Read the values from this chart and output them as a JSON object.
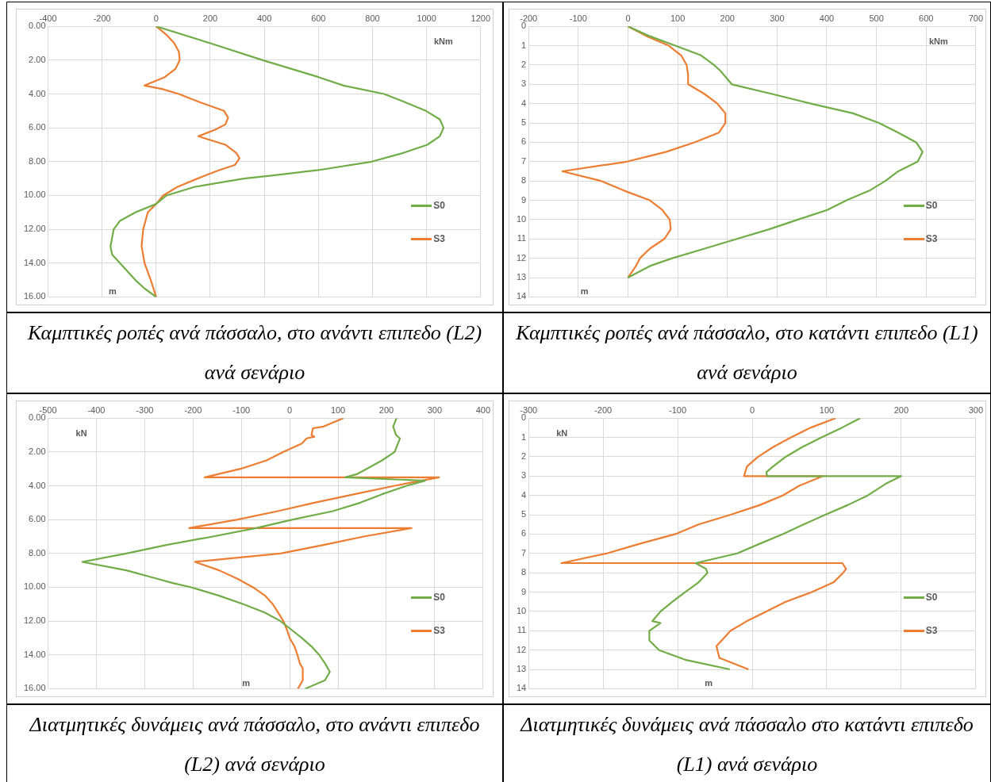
{
  "chart_data": [
    {
      "type": "line",
      "title": "Καμπτικές ροπές ανά πάσσαλο, στο ανάντι επιπεδο (L2) ανά σενάριο",
      "xlabel": "kNm",
      "ylabel": "m",
      "xlim": [
        -400,
        1200
      ],
      "xticks": [
        -400,
        -200,
        0,
        200,
        400,
        600,
        800,
        1000,
        1200
      ],
      "ylim": [
        16,
        0
      ],
      "yticks": [
        {
          "value": 0,
          "label": "0.00"
        },
        {
          "value": 2,
          "label": "2.00"
        },
        {
          "value": 4,
          "label": "4.00"
        },
        {
          "value": 6,
          "label": "6.00"
        },
        {
          "value": 8,
          "label": "8.00"
        },
        {
          "value": 10,
          "label": "10.00"
        },
        {
          "value": 12,
          "label": "12.00"
        },
        {
          "value": 14,
          "label": "14.00"
        },
        {
          "value": 16,
          "label": "16.00"
        }
      ],
      "grid": true,
      "legend": "right",
      "series": [
        {
          "name": "S0",
          "color": "#70ad47",
          "x": [
            0,
            200,
            394,
            600,
            693,
            843,
            923,
            998,
            1049,
            1063,
            1049,
            1003,
            911,
            797,
            600,
            440,
            325,
            141,
            38,
            0,
            -77,
            -134,
            -157,
            -169,
            -163,
            -134,
            -77,
            -43,
            0
          ],
          "values": [
            0,
            1,
            2,
            3,
            3.5,
            4,
            4.5,
            5,
            5.5,
            6,
            6.5,
            7,
            7.5,
            8,
            8.5,
            8.8,
            9,
            9.5,
            10,
            10.5,
            11,
            11.5,
            12,
            13,
            13.5,
            14,
            15,
            15.5,
            16
          ]
        },
        {
          "name": "S3",
          "color": "#ed7d31",
          "x": [
            0,
            38,
            67,
            84,
            87,
            72,
            32,
            -43,
            21,
            84,
            164,
            251,
            266,
            256,
            220,
            156,
            256,
            297,
            308,
            291,
            233,
            153,
            78,
            26,
            0,
            -31,
            -48,
            -54,
            -43,
            -20,
            0
          ],
          "values": [
            0,
            0.5,
            1,
            1.5,
            2,
            2.5,
            3,
            3.5,
            3.7,
            4,
            4.5,
            5,
            5.4,
            5.8,
            6.1,
            6.5,
            7,
            7.5,
            7.8,
            8.2,
            8.5,
            9,
            9.5,
            10,
            10.5,
            11,
            12,
            13,
            14,
            15,
            16
          ]
        }
      ]
    },
    {
      "type": "line",
      "title": "Καμπτικές ροπές ανά πάσσαλο, στο κατάντι επιπεδο (L1) ανά σενάριο",
      "xlabel": "kNm",
      "ylabel": "m",
      "xlim": [
        -200,
        700
      ],
      "xticks": [
        -200,
        -100,
        0,
        100,
        200,
        300,
        400,
        500,
        600,
        700
      ],
      "ylim": [
        14,
        0
      ],
      "yticks": [
        0,
        1,
        2,
        3,
        4,
        5,
        6,
        7,
        8,
        9,
        10,
        11,
        12,
        13,
        14
      ],
      "grid": true,
      "legend": "right",
      "series": [
        {
          "name": "S0",
          "color": "#70ad47",
          "x": [
            0,
            43,
            95,
            147,
            173,
            186,
            209,
            290,
            368,
            453,
            505,
            544,
            580,
            593,
            583,
            544,
            518,
            486,
            440,
            401,
            342,
            284,
            219,
            154,
            89,
            44,
            0
          ],
          "values": [
            0,
            0.5,
            1,
            1.5,
            2,
            2.3,
            3,
            3.5,
            4,
            4.5,
            5,
            5.5,
            6,
            6.5,
            7,
            7.5,
            8,
            8.5,
            9,
            9.5,
            10,
            10.5,
            11,
            11.5,
            12,
            12.4,
            13
          ]
        },
        {
          "name": "S3",
          "color": "#ed7d31",
          "x": [
            0,
            37,
            82,
            107,
            118,
            121,
            121,
            128,
            154,
            180,
            196,
            196,
            183,
            134,
            76,
            -2,
            -132,
            -54,
            -8,
            44,
            69,
            84,
            86,
            73,
            44,
            24,
            16,
            0
          ],
          "values": [
            0,
            0.5,
            1,
            1.5,
            2,
            2.5,
            3,
            3.1,
            3.5,
            4,
            4.5,
            5,
            5.5,
            6,
            6.5,
            7,
            7.5,
            8,
            8.5,
            9,
            9.5,
            10,
            10.5,
            11,
            11.5,
            12,
            12.4,
            13
          ]
        }
      ]
    },
    {
      "type": "line",
      "title": "Διατμητικές δυνάμεις ανά πάσσαλο, στο ανάντι επιπεδο (L2) ανά σενάριο",
      "xlabel": "kN",
      "ylabel": "m",
      "xlim": [
        -500,
        400
      ],
      "xticks": [
        -500,
        -400,
        -300,
        -200,
        -100,
        0,
        100,
        200,
        300,
        400
      ],
      "ylim": [
        16,
        0
      ],
      "yticks": [
        {
          "value": 0,
          "label": "0.00"
        },
        {
          "value": 2,
          "label": "2.00"
        },
        {
          "value": 4,
          "label": "4.00"
        },
        {
          "value": 6,
          "label": "6.00"
        },
        {
          "value": 8,
          "label": "8.00"
        },
        {
          "value": 10,
          "label": "10.00"
        },
        {
          "value": 12,
          "label": "12.00"
        },
        {
          "value": 14,
          "label": "14.00"
        },
        {
          "value": 16,
          "label": "16.00"
        }
      ],
      "grid": true,
      "legend": "right",
      "series": [
        {
          "name": "S0",
          "color": "#70ad47",
          "x": [
            221,
            214,
            220,
            228,
            217,
            191,
            159,
            140,
            115,
            280,
            242,
            191,
            146,
            89,
            6,
            -70,
            -159,
            -255,
            -338,
            -429,
            -338,
            -274,
            -242,
            -204,
            -146,
            -96,
            -51,
            -19,
            3,
            25,
            45,
            61,
            73,
            83,
            73,
            32
          ],
          "values": [
            0,
            0.5,
            1,
            1.2,
            2,
            2.5,
            3,
            3.3,
            3.5,
            3.7,
            4,
            4.5,
            5,
            5.5,
            6,
            6.5,
            7,
            7.5,
            8,
            8.5,
            9,
            9.5,
            9.75,
            10,
            10.5,
            11,
            11.5,
            12,
            12.5,
            13,
            13.5,
            14,
            14.5,
            15,
            15.5,
            16
          ]
        },
        {
          "name": "S3",
          "color": "#ed7d31",
          "x": [
            111,
            70,
            48,
            45,
            51,
            35,
            25,
            -13,
            -48,
            -102,
            -176,
            309,
            217,
            134,
            51,
            -25,
            -108,
            -208,
            252,
            153,
            70,
            -19,
            -196,
            -146,
            -108,
            -76,
            -51,
            -35,
            -24,
            -13,
            -6,
            0,
            10,
            16,
            21,
            27,
            27,
            17
          ],
          "values": [
            0,
            0.5,
            0.6,
            1,
            1.1,
            1.2,
            1.5,
            2,
            2.5,
            3,
            3.5,
            3.5,
            4,
            4.5,
            5,
            5.5,
            6,
            6.5,
            6.5,
            7,
            7.5,
            8,
            8.5,
            9,
            9.5,
            10,
            10.5,
            11,
            11.5,
            12,
            12.5,
            13,
            13.5,
            14,
            14.5,
            14.8,
            15.5,
            16
          ]
        }
      ]
    },
    {
      "type": "line",
      "title": "Διατμητικές δυνάμεις ανά πάσσαλο στο κατάντι επιπεδο (L1) ανά σενάριο",
      "xlabel": "kN",
      "ylabel": "m",
      "xlim": [
        -300,
        300
      ],
      "xticks": [
        -300,
        -200,
        -100,
        0,
        100,
        200,
        300
      ],
      "ylim": [
        14,
        0
      ],
      "yticks": [
        0,
        1,
        2,
        3,
        4,
        5,
        6,
        7,
        8,
        9,
        10,
        11,
        12,
        13,
        14
      ],
      "grid": true,
      "legend": "right",
      "series": [
        {
          "name": "S0",
          "color": "#70ad47",
          "x": [
            145,
            120,
            93,
            67,
            45,
            28,
            19,
            20,
            200,
            179,
            155,
            128,
            98,
            69,
            41,
            10,
            -20,
            -76,
            -62,
            -60,
            -72,
            -90,
            -107,
            -123,
            -134,
            -123,
            -138,
            -138,
            -125,
            -90,
            -30
          ],
          "values": [
            0,
            0.5,
            1,
            1.5,
            2,
            2.5,
            2.8,
            3,
            3,
            3.4,
            4,
            4.5,
            5,
            5.5,
            6,
            6.5,
            7,
            7.5,
            7.8,
            8,
            8.5,
            9,
            9.5,
            10,
            10.5,
            10.6,
            11,
            11.5,
            12,
            12.5,
            13
          ]
        },
        {
          "name": "S3",
          "color": "#ed7d31",
          "x": [
            112,
            78,
            52,
            28,
            8,
            -7,
            -11,
            95,
            63,
            41,
            10,
            -29,
            -72,
            -103,
            -151,
            -195,
            -256,
            121,
            126,
            122,
            109,
            80,
            45,
            19,
            -7,
            -29,
            -48,
            -44,
            -5
          ],
          "values": [
            0,
            0.5,
            1,
            1.5,
            2,
            2.5,
            3,
            3,
            3.5,
            4,
            4.5,
            5,
            5.5,
            6,
            6.5,
            7,
            7.5,
            7.5,
            7.8,
            8,
            8.5,
            9,
            9.5,
            10,
            10.5,
            11,
            11.8,
            12.4,
            13
          ]
        }
      ]
    }
  ]
}
